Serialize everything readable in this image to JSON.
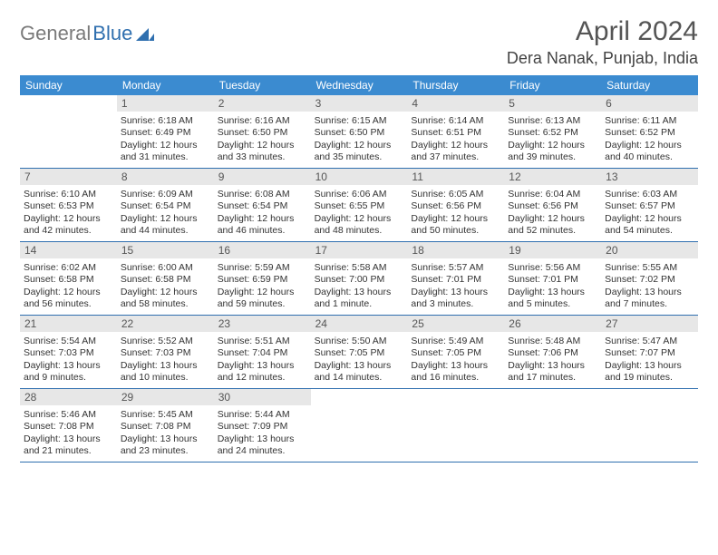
{
  "logo": {
    "text_gray": "General",
    "text_blue": "Blue"
  },
  "title": "April 2024",
  "location": "Dera Nanak, Punjab, India",
  "colors": {
    "header_bg": "#3b8bd0",
    "header_text": "#ffffff",
    "daybar_bg": "#e7e7e7",
    "rule": "#2f6faf",
    "logo_gray": "#7a7a7a",
    "logo_blue": "#2f6faf"
  },
  "day_names": [
    "Sunday",
    "Monday",
    "Tuesday",
    "Wednesday",
    "Thursday",
    "Friday",
    "Saturday"
  ],
  "weeks": [
    [
      {
        "num": "",
        "lines": [
          "",
          "",
          "",
          ""
        ]
      },
      {
        "num": "1",
        "lines": [
          "Sunrise: 6:18 AM",
          "Sunset: 6:49 PM",
          "Daylight: 12 hours",
          "and 31 minutes."
        ]
      },
      {
        "num": "2",
        "lines": [
          "Sunrise: 6:16 AM",
          "Sunset: 6:50 PM",
          "Daylight: 12 hours",
          "and 33 minutes."
        ]
      },
      {
        "num": "3",
        "lines": [
          "Sunrise: 6:15 AM",
          "Sunset: 6:50 PM",
          "Daylight: 12 hours",
          "and 35 minutes."
        ]
      },
      {
        "num": "4",
        "lines": [
          "Sunrise: 6:14 AM",
          "Sunset: 6:51 PM",
          "Daylight: 12 hours",
          "and 37 minutes."
        ]
      },
      {
        "num": "5",
        "lines": [
          "Sunrise: 6:13 AM",
          "Sunset: 6:52 PM",
          "Daylight: 12 hours",
          "and 39 minutes."
        ]
      },
      {
        "num": "6",
        "lines": [
          "Sunrise: 6:11 AM",
          "Sunset: 6:52 PM",
          "Daylight: 12 hours",
          "and 40 minutes."
        ]
      }
    ],
    [
      {
        "num": "7",
        "lines": [
          "Sunrise: 6:10 AM",
          "Sunset: 6:53 PM",
          "Daylight: 12 hours",
          "and 42 minutes."
        ]
      },
      {
        "num": "8",
        "lines": [
          "Sunrise: 6:09 AM",
          "Sunset: 6:54 PM",
          "Daylight: 12 hours",
          "and 44 minutes."
        ]
      },
      {
        "num": "9",
        "lines": [
          "Sunrise: 6:08 AM",
          "Sunset: 6:54 PM",
          "Daylight: 12 hours",
          "and 46 minutes."
        ]
      },
      {
        "num": "10",
        "lines": [
          "Sunrise: 6:06 AM",
          "Sunset: 6:55 PM",
          "Daylight: 12 hours",
          "and 48 minutes."
        ]
      },
      {
        "num": "11",
        "lines": [
          "Sunrise: 6:05 AM",
          "Sunset: 6:56 PM",
          "Daylight: 12 hours",
          "and 50 minutes."
        ]
      },
      {
        "num": "12",
        "lines": [
          "Sunrise: 6:04 AM",
          "Sunset: 6:56 PM",
          "Daylight: 12 hours",
          "and 52 minutes."
        ]
      },
      {
        "num": "13",
        "lines": [
          "Sunrise: 6:03 AM",
          "Sunset: 6:57 PM",
          "Daylight: 12 hours",
          "and 54 minutes."
        ]
      }
    ],
    [
      {
        "num": "14",
        "lines": [
          "Sunrise: 6:02 AM",
          "Sunset: 6:58 PM",
          "Daylight: 12 hours",
          "and 56 minutes."
        ]
      },
      {
        "num": "15",
        "lines": [
          "Sunrise: 6:00 AM",
          "Sunset: 6:58 PM",
          "Daylight: 12 hours",
          "and 58 minutes."
        ]
      },
      {
        "num": "16",
        "lines": [
          "Sunrise: 5:59 AM",
          "Sunset: 6:59 PM",
          "Daylight: 12 hours",
          "and 59 minutes."
        ]
      },
      {
        "num": "17",
        "lines": [
          "Sunrise: 5:58 AM",
          "Sunset: 7:00 PM",
          "Daylight: 13 hours",
          "and 1 minute."
        ]
      },
      {
        "num": "18",
        "lines": [
          "Sunrise: 5:57 AM",
          "Sunset: 7:01 PM",
          "Daylight: 13 hours",
          "and 3 minutes."
        ]
      },
      {
        "num": "19",
        "lines": [
          "Sunrise: 5:56 AM",
          "Sunset: 7:01 PM",
          "Daylight: 13 hours",
          "and 5 minutes."
        ]
      },
      {
        "num": "20",
        "lines": [
          "Sunrise: 5:55 AM",
          "Sunset: 7:02 PM",
          "Daylight: 13 hours",
          "and 7 minutes."
        ]
      }
    ],
    [
      {
        "num": "21",
        "lines": [
          "Sunrise: 5:54 AM",
          "Sunset: 7:03 PM",
          "Daylight: 13 hours",
          "and 9 minutes."
        ]
      },
      {
        "num": "22",
        "lines": [
          "Sunrise: 5:52 AM",
          "Sunset: 7:03 PM",
          "Daylight: 13 hours",
          "and 10 minutes."
        ]
      },
      {
        "num": "23",
        "lines": [
          "Sunrise: 5:51 AM",
          "Sunset: 7:04 PM",
          "Daylight: 13 hours",
          "and 12 minutes."
        ]
      },
      {
        "num": "24",
        "lines": [
          "Sunrise: 5:50 AM",
          "Sunset: 7:05 PM",
          "Daylight: 13 hours",
          "and 14 minutes."
        ]
      },
      {
        "num": "25",
        "lines": [
          "Sunrise: 5:49 AM",
          "Sunset: 7:05 PM",
          "Daylight: 13 hours",
          "and 16 minutes."
        ]
      },
      {
        "num": "26",
        "lines": [
          "Sunrise: 5:48 AM",
          "Sunset: 7:06 PM",
          "Daylight: 13 hours",
          "and 17 minutes."
        ]
      },
      {
        "num": "27",
        "lines": [
          "Sunrise: 5:47 AM",
          "Sunset: 7:07 PM",
          "Daylight: 13 hours",
          "and 19 minutes."
        ]
      }
    ],
    [
      {
        "num": "28",
        "lines": [
          "Sunrise: 5:46 AM",
          "Sunset: 7:08 PM",
          "Daylight: 13 hours",
          "and 21 minutes."
        ]
      },
      {
        "num": "29",
        "lines": [
          "Sunrise: 5:45 AM",
          "Sunset: 7:08 PM",
          "Daylight: 13 hours",
          "and 23 minutes."
        ]
      },
      {
        "num": "30",
        "lines": [
          "Sunrise: 5:44 AM",
          "Sunset: 7:09 PM",
          "Daylight: 13 hours",
          "and 24 minutes."
        ]
      },
      {
        "num": "",
        "lines": [
          "",
          "",
          "",
          ""
        ]
      },
      {
        "num": "",
        "lines": [
          "",
          "",
          "",
          ""
        ]
      },
      {
        "num": "",
        "lines": [
          "",
          "",
          "",
          ""
        ]
      },
      {
        "num": "",
        "lines": [
          "",
          "",
          "",
          ""
        ]
      }
    ]
  ]
}
